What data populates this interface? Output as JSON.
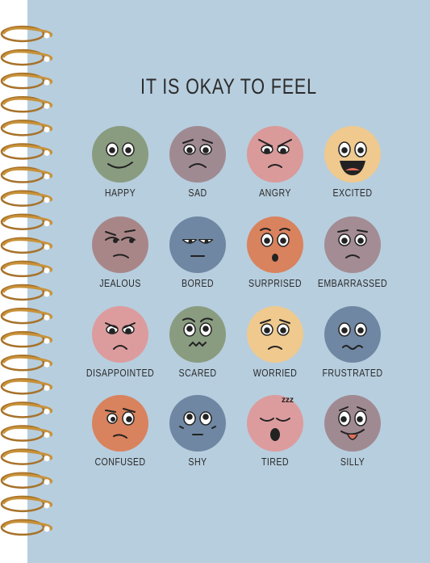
{
  "cover": {
    "title": "IT IS OKAY TO FEEL",
    "background_color": "#b7cede",
    "ring_color": "#c8923a"
  },
  "emotions": [
    {
      "label": "HAPPY",
      "color": "#8a9c80",
      "icon": "happy-face-icon"
    },
    {
      "label": "SAD",
      "color": "#a08a92",
      "icon": "sad-face-icon"
    },
    {
      "label": "ANGRY",
      "color": "#d99a99",
      "icon": "angry-face-icon"
    },
    {
      "label": "EXCITED",
      "color": "#efc98e",
      "icon": "excited-face-icon"
    },
    {
      "label": "JEALOUS",
      "color": "#a88688",
      "icon": "jealous-face-icon"
    },
    {
      "label": "BORED",
      "color": "#6f87a2",
      "icon": "bored-face-icon"
    },
    {
      "label": "SURPRISED",
      "color": "#d9825e",
      "icon": "surprised-face-icon"
    },
    {
      "label": "EMBARRASSED",
      "color": "#a38c93",
      "icon": "embarrassed-face-icon"
    },
    {
      "label": "DISAPPOINTED",
      "color": "#dc9c9e",
      "icon": "disappointed-face-icon"
    },
    {
      "label": "SCARED",
      "color": "#8a9c80",
      "icon": "scared-face-icon"
    },
    {
      "label": "WORRIED",
      "color": "#efc98e",
      "icon": "worried-face-icon"
    },
    {
      "label": "FRUSTRATED",
      "color": "#6f87a2",
      "icon": "frustrated-face-icon"
    },
    {
      "label": "CONFUSED",
      "color": "#d9825e",
      "icon": "confused-face-icon"
    },
    {
      "label": "SHY",
      "color": "#6f87a2",
      "icon": "shy-face-icon"
    },
    {
      "label": "TIRED",
      "color": "#dc9c9e",
      "icon": "tired-face-icon"
    },
    {
      "label": "SILLY",
      "color": "#a08a92",
      "icon": "silly-face-icon"
    }
  ]
}
